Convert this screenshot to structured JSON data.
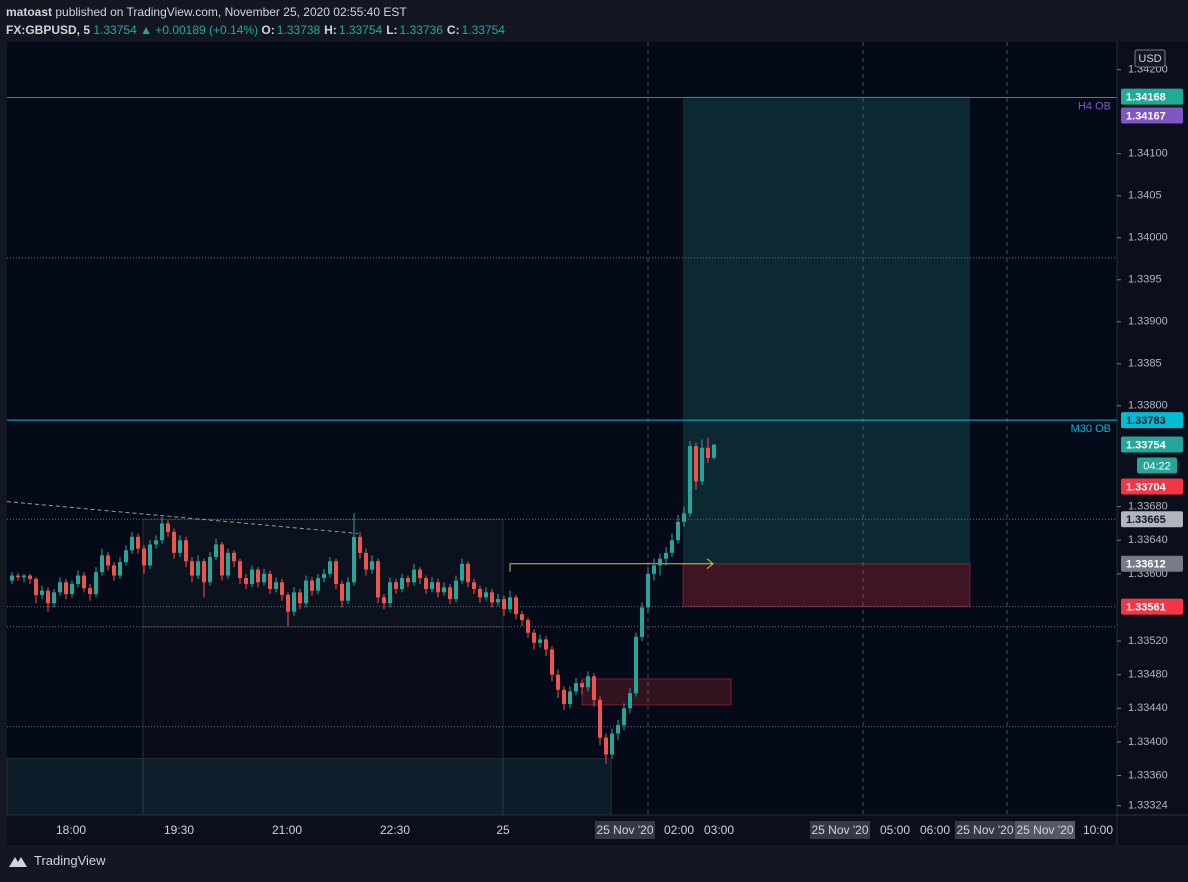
{
  "header": {
    "author": "matoast",
    "published": "published on TradingView.com, November 25, 2020 02:55:40 EST",
    "symbol": "FX:GBPUSD, 5",
    "last": "1.33754",
    "change": "▲ +0.00189 (+0.14%)",
    "ohlc": [
      {
        "key": "O:",
        "value": "1.33738"
      },
      {
        "key": "H:",
        "value": "1.33754"
      },
      {
        "key": "L:",
        "value": "1.33736"
      },
      {
        "key": "C:",
        "value": "1.33754"
      }
    ]
  },
  "footer": {
    "brand": "TradingView"
  },
  "chart_data": {
    "type": "candlestick",
    "currency": "USD",
    "up_color": "#26a69a",
    "down_color": "#ef5350",
    "ylim": [
      1.33313,
      1.34233
    ],
    "yticks": [
      {
        "value": 1.342,
        "label": "1.34200"
      },
      {
        "value": 1.341,
        "label": "1.34100"
      },
      1.3405,
      {
        "value": 1.34,
        "label": "1.34000"
      },
      1.3395,
      {
        "value": 1.339,
        "label": "1.33900"
      },
      1.3385,
      {
        "value": 1.338,
        "label": "1.33800"
      },
      {
        "value": 1.3368,
        "label": "1.33680"
      },
      {
        "value": 1.3364,
        "label": "1.33640"
      },
      {
        "value": 1.336,
        "label": "1.33600"
      },
      {
        "value": 1.3352,
        "label": "1.33520"
      },
      {
        "value": 1.3348,
        "label": "1.33480"
      },
      {
        "value": 1.3344,
        "label": "1.33440"
      },
      {
        "value": 1.334,
        "label": "1.33400"
      },
      {
        "value": 1.3336,
        "label": "1.33360"
      },
      1.33324
    ],
    "time_labels": [
      "18:00",
      "19:30",
      "21:00",
      "22:30",
      "25",
      "25 Nov '20",
      "02:00",
      "03:00",
      "25 Nov '20",
      "05:00",
      "06:00",
      "25 Nov '20",
      "25 Nov '20",
      "10:00"
    ],
    "levels": [
      {
        "name": "H4 OB",
        "price": 1.34167,
        "color": "#7e57c2"
      },
      {
        "name": "M30 OB",
        "price": 1.33783,
        "color": "#00bcd4"
      }
    ],
    "dotted_levels": [
      1.33976,
      1.33665,
      1.33561,
      1.33537,
      1.33418
    ],
    "position": {
      "target": 1.34168,
      "entry": 1.33612,
      "stop": 1.33561
    },
    "zones": [
      {
        "high": 1.33475,
        "low": 1.33444,
        "color": "#f2364533"
      },
      {
        "high": 1.33665,
        "low": 1.33537,
        "color": "#2a2e3933"
      },
      {
        "high": 1.33537,
        "low": 1.33313,
        "color": "#2a2e3922"
      },
      {
        "high": 1.3338,
        "low": 1.33313,
        "color": "#26a69a1f"
      }
    ],
    "trendline": [
      1.33686,
      1.33648
    ],
    "arrow": 1.33612,
    "countdown": "04:22",
    "price_labels": [
      {
        "value": 1.34168,
        "color": "#22ab94"
      },
      {
        "value": 1.34167,
        "color": "#7e57c2"
      },
      {
        "value": 1.33783,
        "color": "#00bcd4"
      },
      {
        "value": 1.33754,
        "color": "#26a69a"
      },
      {
        "value": 1.33704,
        "color": "#f23645"
      },
      {
        "value": 1.33665,
        "color": "#b2b5be"
      },
      {
        "value": 1.33612,
        "color": "#787b86"
      },
      {
        "value": 1.33561,
        "color": "#f23645"
      }
    ],
    "ohlc": [
      [
        1.33592,
        1.33602,
        1.33588,
        1.33598
      ],
      [
        1.33598,
        1.33601,
        1.33592,
        1.33596
      ],
      [
        1.33596,
        1.336,
        1.3359,
        1.33598
      ],
      [
        1.33598,
        1.336,
        1.33588,
        1.33594
      ],
      [
        1.33594,
        1.33596,
        1.33565,
        1.33575
      ],
      [
        1.33575,
        1.33586,
        1.3357,
        1.3358
      ],
      [
        1.3358,
        1.33584,
        1.33555,
        1.33565
      ],
      [
        1.33565,
        1.33582,
        1.3356,
        1.33578
      ],
      [
        1.33578,
        1.33596,
        1.33574,
        1.3359
      ],
      [
        1.3359,
        1.33594,
        1.3357,
        1.33576
      ],
      [
        1.33576,
        1.33592,
        1.33572,
        1.33588
      ],
      [
        1.33588,
        1.33604,
        1.33584,
        1.33598
      ],
      [
        1.33598,
        1.33602,
        1.33578,
        1.33583
      ],
      [
        1.33583,
        1.33588,
        1.33568,
        1.33576
      ],
      [
        1.33576,
        1.33608,
        1.33572,
        1.33602
      ],
      [
        1.33602,
        1.3363,
        1.33598,
        1.33622
      ],
      [
        1.33622,
        1.33626,
        1.33604,
        1.3361
      ],
      [
        1.3361,
        1.33614,
        1.33592,
        1.33598
      ],
      [
        1.33598,
        1.3362,
        1.33594,
        1.33614
      ],
      [
        1.33614,
        1.33634,
        1.3361,
        1.33628
      ],
      [
        1.33628,
        1.3365,
        1.33624,
        1.33644
      ],
      [
        1.33644,
        1.33648,
        1.33624,
        1.3363
      ],
      [
        1.3363,
        1.33634,
        1.336,
        1.3361
      ],
      [
        1.3361,
        1.3364,
        1.33606,
        1.33635
      ],
      [
        1.33635,
        1.33646,
        1.3363,
        1.3364
      ],
      [
        1.3364,
        1.33668,
        1.33636,
        1.3366
      ],
      [
        1.3366,
        1.33664,
        1.33644,
        1.3365
      ],
      [
        1.3365,
        1.33654,
        1.33618,
        1.33625
      ],
      [
        1.33625,
        1.33646,
        1.3362,
        1.3364
      ],
      [
        1.3364,
        1.33644,
        1.33608,
        1.33615
      ],
      [
        1.33615,
        1.3362,
        1.3359,
        1.33598
      ],
      [
        1.33598,
        1.33622,
        1.33594,
        1.33615
      ],
      [
        1.33615,
        1.33618,
        1.33572,
        1.3359
      ],
      [
        1.3359,
        1.33626,
        1.33586,
        1.3362
      ],
      [
        1.3362,
        1.33642,
        1.33616,
        1.33635
      ],
      [
        1.33635,
        1.33638,
        1.33592,
        1.33598
      ],
      [
        1.33598,
        1.3363,
        1.33594,
        1.33625
      ],
      [
        1.33625,
        1.33628,
        1.33608,
        1.33615
      ],
      [
        1.33615,
        1.33618,
        1.33588,
        1.33595
      ],
      [
        1.33595,
        1.336,
        1.33582,
        1.33588
      ],
      [
        1.33588,
        1.3361,
        1.33584,
        1.33605
      ],
      [
        1.33605,
        1.33608,
        1.33584,
        1.3359
      ],
      [
        1.3359,
        1.33606,
        1.33586,
        1.336
      ],
      [
        1.336,
        1.33604,
        1.33576,
        1.33582
      ],
      [
        1.33582,
        1.33596,
        1.33578,
        1.3359
      ],
      [
        1.3359,
        1.33594,
        1.33568,
        1.33575
      ],
      [
        1.33575,
        1.33578,
        1.33538,
        1.33555
      ],
      [
        1.33555,
        1.33584,
        1.3355,
        1.33578
      ],
      [
        1.33578,
        1.33582,
        1.33558,
        1.33565
      ],
      [
        1.33565,
        1.33598,
        1.3356,
        1.33592
      ],
      [
        1.33592,
        1.33596,
        1.33574,
        1.3358
      ],
      [
        1.3358,
        1.336,
        1.33576,
        1.33595
      ],
      [
        1.33595,
        1.33606,
        1.3359,
        1.336
      ],
      [
        1.336,
        1.3362,
        1.33596,
        1.33615
      ],
      [
        1.33615,
        1.33618,
        1.33582,
        1.33588
      ],
      [
        1.33588,
        1.33592,
        1.3356,
        1.33568
      ],
      [
        1.33568,
        1.33596,
        1.33564,
        1.3359
      ],
      [
        1.3359,
        1.33672,
        1.33586,
        1.33644
      ],
      [
        1.33644,
        1.3365,
        1.33618,
        1.33625
      ],
      [
        1.33625,
        1.3363,
        1.33598,
        1.33605
      ],
      [
        1.33605,
        1.33622,
        1.336,
        1.33615
      ],
      [
        1.33615,
        1.33618,
        1.33565,
        1.33572
      ],
      [
        1.33572,
        1.33576,
        1.33558,
        1.33565
      ],
      [
        1.33565,
        1.33596,
        1.3356,
        1.3359
      ],
      [
        1.3359,
        1.33594,
        1.33576,
        1.33582
      ],
      [
        1.33582,
        1.336,
        1.33578,
        1.33595
      ],
      [
        1.33595,
        1.33598,
        1.33584,
        1.3359
      ],
      [
        1.3359,
        1.33612,
        1.33586,
        1.33605
      ],
      [
        1.33605,
        1.33608,
        1.33588,
        1.33595
      ],
      [
        1.33595,
        1.33598,
        1.33576,
        1.33582
      ],
      [
        1.33582,
        1.33596,
        1.33578,
        1.3359
      ],
      [
        1.3359,
        1.33594,
        1.33572,
        1.33578
      ],
      [
        1.33578,
        1.3359,
        1.33574,
        1.33584
      ],
      [
        1.33584,
        1.33588,
        1.33564,
        1.3357
      ],
      [
        1.3357,
        1.33598,
        1.33566,
        1.33592
      ],
      [
        1.33592,
        1.33618,
        1.33588,
        1.33612
      ],
      [
        1.33612,
        1.33615,
        1.33584,
        1.3359
      ],
      [
        1.3359,
        1.33594,
        1.33576,
        1.33582
      ],
      [
        1.33582,
        1.33586,
        1.33566,
        1.33572
      ],
      [
        1.33572,
        1.33584,
        1.33568,
        1.33578
      ],
      [
        1.33578,
        1.33582,
        1.3356,
        1.33566
      ],
      [
        1.33566,
        1.33576,
        1.33562,
        1.3357
      ],
      [
        1.3357,
        1.33574,
        1.3355,
        1.33558
      ],
      [
        1.33558,
        1.3358,
        1.33554,
        1.33572
      ],
      [
        1.33572,
        1.33575,
        1.33546,
        1.33552
      ],
      [
        1.33552,
        1.33556,
        1.33538,
        1.33545
      ],
      [
        1.33545,
        1.33548,
        1.33524,
        1.3353
      ],
      [
        1.3353,
        1.33534,
        1.3351,
        1.33518
      ],
      [
        1.33518,
        1.33528,
        1.33512,
        1.33522
      ],
      [
        1.33522,
        1.33526,
        1.33502,
        1.3351
      ],
      [
        1.3351,
        1.33514,
        1.33472,
        1.3348
      ],
      [
        1.3348,
        1.33486,
        1.33452,
        1.33462
      ],
      [
        1.33462,
        1.33466,
        1.33438,
        1.33445
      ],
      [
        1.33445,
        1.33466,
        1.3344,
        1.3346
      ],
      [
        1.3346,
        1.33476,
        1.33456,
        1.3347
      ],
      [
        1.3347,
        1.33474,
        1.33456,
        1.33465
      ],
      [
        1.33465,
        1.33484,
        1.3346,
        1.33478
      ],
      [
        1.33478,
        1.33482,
        1.33442,
        1.3345
      ],
      [
        1.3345,
        1.33454,
        1.33396,
        1.33405
      ],
      [
        1.33405,
        1.3341,
        1.33374,
        1.33385
      ],
      [
        1.33385,
        1.33416,
        1.3338,
        1.3341
      ],
      [
        1.3341,
        1.33426,
        1.33402,
        1.3342
      ],
      [
        1.3342,
        1.33446,
        1.33414,
        1.3344
      ],
      [
        1.3344,
        1.33464,
        1.33434,
        1.33458
      ],
      [
        1.33458,
        1.3353,
        1.33454,
        1.33525
      ],
      [
        1.33525,
        1.33566,
        1.3352,
        1.3356
      ],
      [
        1.3356,
        1.33608,
        1.33554,
        1.336
      ],
      [
        1.336,
        1.33618,
        1.33592,
        1.3361
      ],
      [
        1.3361,
        1.33624,
        1.33598,
        1.33618
      ],
      [
        1.33618,
        1.33632,
        1.3361,
        1.33625
      ],
      [
        1.33625,
        1.33648,
        1.3362,
        1.3364
      ],
      [
        1.3364,
        1.3367,
        1.33636,
        1.33662
      ],
      [
        1.33662,
        1.3368,
        1.33656,
        1.33672
      ],
      [
        1.33672,
        1.33758,
        1.33668,
        1.33752
      ],
      [
        1.33752,
        1.33756,
        1.337,
        1.3371
      ],
      [
        1.3371,
        1.3376,
        1.33706,
        1.3375
      ],
      [
        1.3375,
        1.33762,
        1.33732,
        1.33738
      ],
      [
        1.33738,
        1.33754,
        1.33736,
        1.33754
      ]
    ]
  }
}
